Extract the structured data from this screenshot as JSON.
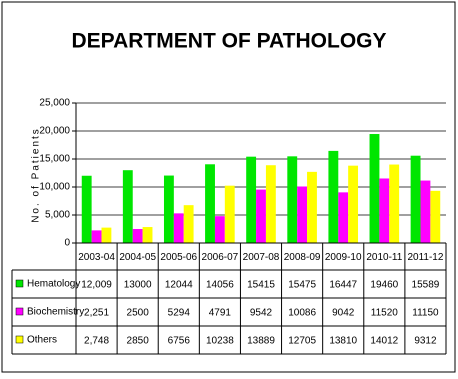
{
  "chart_data": {
    "type": "bar",
    "title": "DEPARTMENT OF PATHOLOGY",
    "y_label": "No. of Patients",
    "categories": [
      "2003-04",
      "2004-05",
      "2005-06",
      "2006-07",
      "2007-08",
      "2008-09",
      "2009-10",
      "2010-11",
      "2011-12"
    ],
    "series": [
      {
        "name": "Hematology",
        "color": "#00e600",
        "values": [
          12009,
          13000,
          12044,
          14056,
          15415,
          15475,
          16447,
          19460,
          15589
        ],
        "value_labels": [
          "12,009",
          "13000",
          "12044",
          "14056",
          "15415",
          "15475",
          "16447",
          "19460",
          "15589"
        ]
      },
      {
        "name": "Biochemistry",
        "color": "#ff00ff",
        "values": [
          2251,
          2500,
          5294,
          4791,
          9542,
          10086,
          9042,
          11520,
          11150
        ],
        "value_labels": [
          "2,251",
          "2500",
          "5294",
          "4791",
          "9542",
          "10086",
          "9042",
          "11520",
          "11150"
        ]
      },
      {
        "name": "Others",
        "color": "#ffff00",
        "values": [
          2748,
          2850,
          6756,
          10238,
          13889,
          12705,
          13810,
          14012,
          9312
        ],
        "value_labels": [
          "2,748",
          "2850",
          "6756",
          "10238",
          "13889",
          "12705",
          "13810",
          "14012",
          "9312"
        ]
      }
    ],
    "ylim": [
      0,
      25000
    ],
    "yticks": [
      0,
      {
        "value": 5000,
        "label": "5,000"
      },
      {
        "value": 10000,
        "label": "10,000"
      },
      {
        "value": 15000,
        "label": "15,000"
      },
      {
        "value": 20000,
        "label": "20,000"
      },
      {
        "value": 25000,
        "label": "25,000"
      }
    ],
    "grid": true
  }
}
